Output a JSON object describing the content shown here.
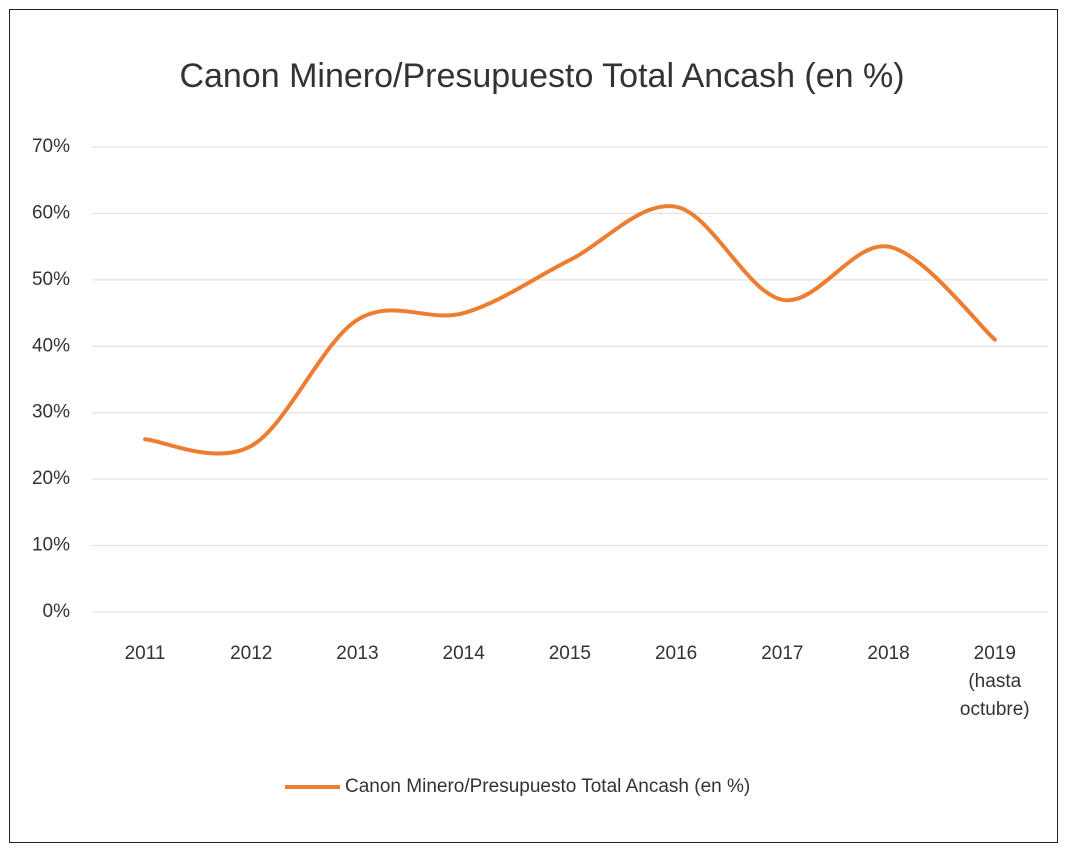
{
  "chart_data": {
    "type": "line",
    "title": "Canon Minero/Presupuesto Total Ancash (en %)",
    "categories": [
      "2011",
      "2012",
      "2013",
      "2014",
      "2015",
      "2016",
      "2017",
      "2018",
      "2019\n(hasta\noctubre)"
    ],
    "series": [
      {
        "name": "Canon Minero/Presupuesto Total Ancash (en %)",
        "color": "#ed7d31",
        "values": [
          26,
          25,
          44,
          45,
          53,
          61,
          47,
          55,
          41
        ]
      }
    ],
    "ylim": [
      0,
      70
    ],
    "yticks": [
      {
        "value": 0,
        "label": "0%"
      },
      {
        "value": 10,
        "label": "10%"
      },
      {
        "value": 20,
        "label": "20%"
      },
      {
        "value": 30,
        "label": "30%"
      },
      {
        "value": 40,
        "label": "40%"
      },
      {
        "value": 50,
        "label": "50%"
      },
      {
        "value": 60,
        "label": "60%"
      },
      {
        "value": 70,
        "label": "70%"
      }
    ],
    "grid": true,
    "smooth": true,
    "legend": "bottom"
  }
}
